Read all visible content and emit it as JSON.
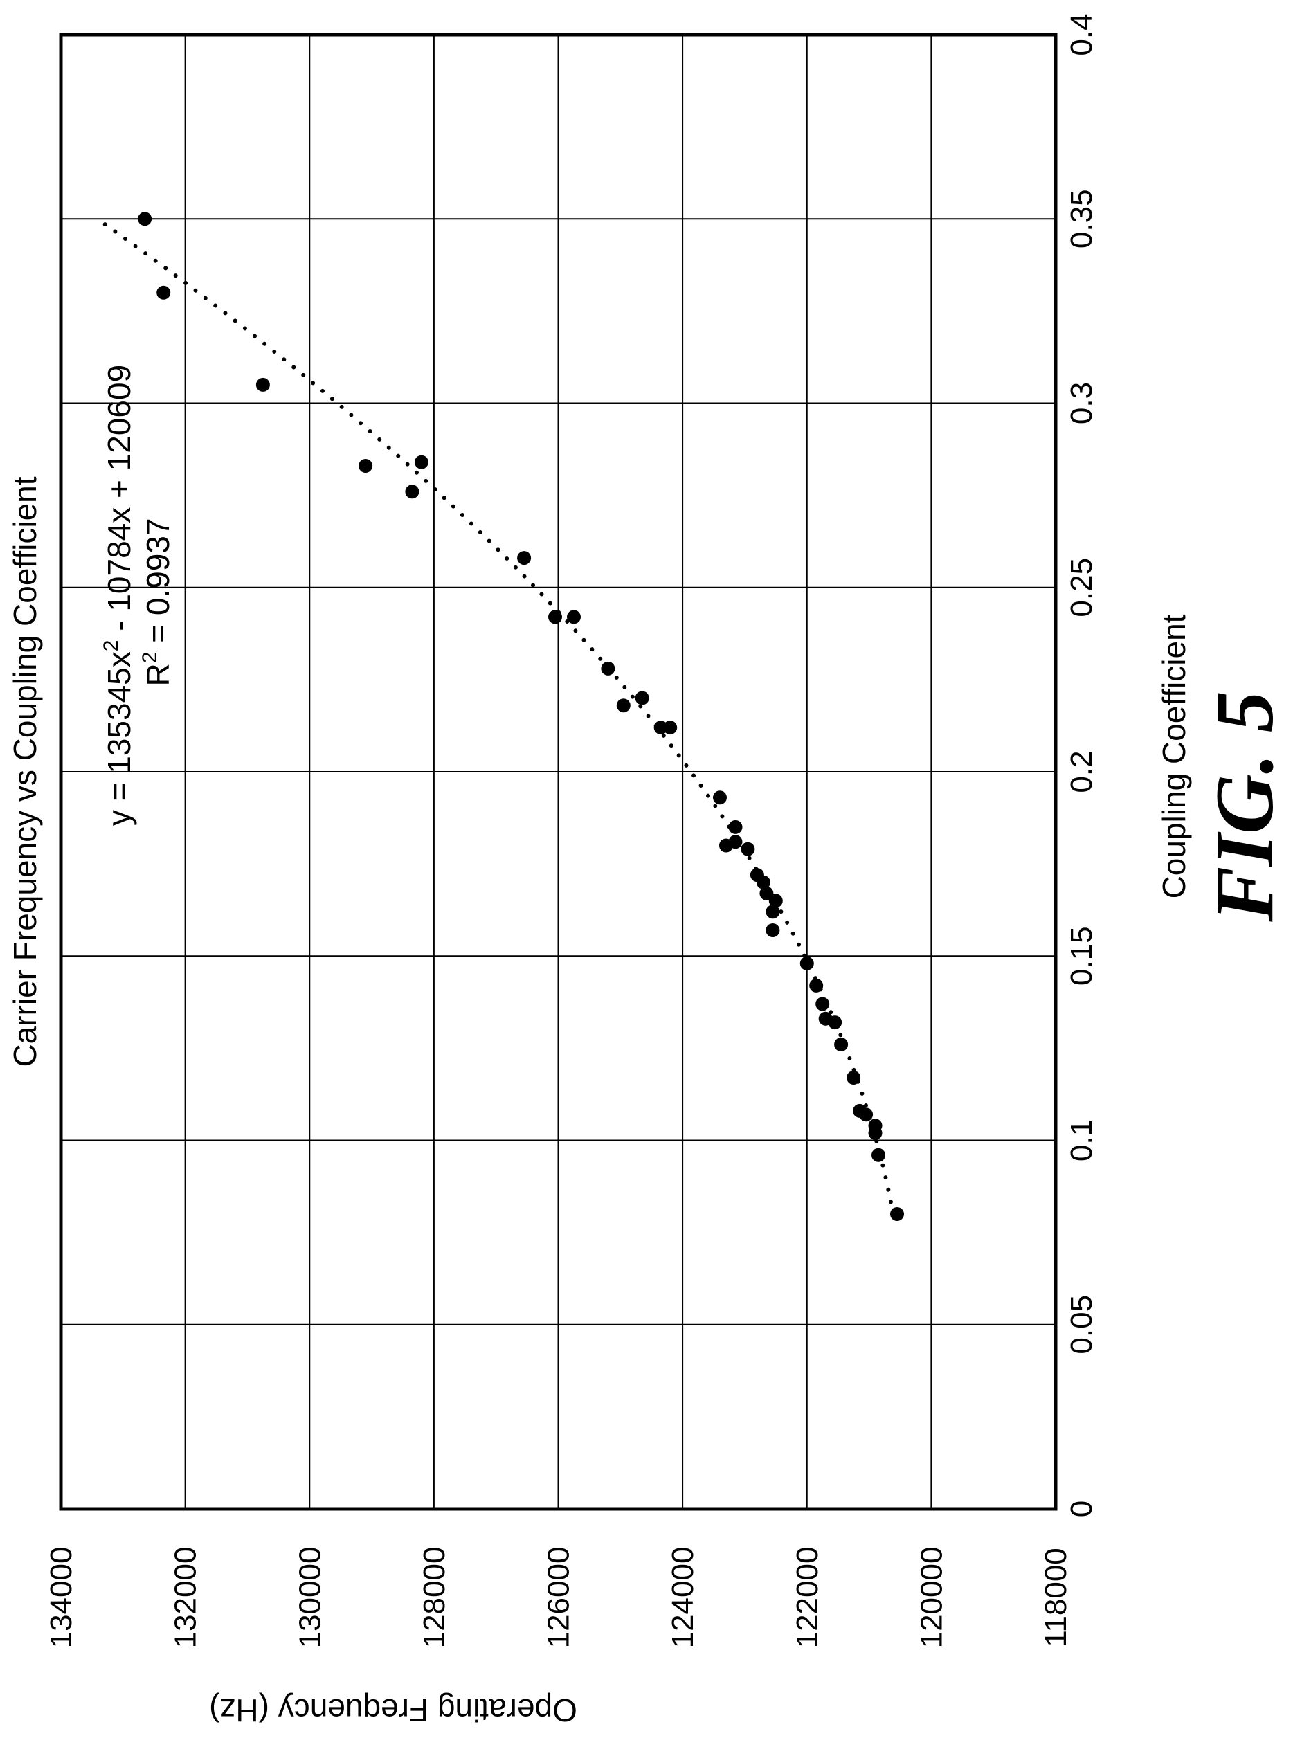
{
  "chart_data": {
    "type": "scatter",
    "title": "Carrier Frequency vs Coupling Coefficient",
    "xlabel": "Coupling Coefficient",
    "ylabel": "Operating Frequency (Hz)",
    "xlim": [
      0,
      0.4
    ],
    "ylim": [
      118000,
      134000
    ],
    "x_ticks": [
      "0",
      "0.05",
      "0.1",
      "0.15",
      "0.2",
      "0.25",
      "0.3",
      "0.35",
      "0.4"
    ],
    "y_ticks": [
      "118000",
      "120000",
      "122000",
      "124000",
      "126000",
      "128000",
      "130000",
      "132000",
      "134000"
    ],
    "grid": true,
    "trendline": {
      "kind": "polynomial-2",
      "equation_label": "y = 135345x",
      "equation_exponent": "2",
      "equation_rest": " - 10784x + 120609",
      "r2_label": "R",
      "r2_exponent": "2",
      "r2_rest": " = 0.9937",
      "coefficients": [
        135345,
        -10784,
        120609
      ],
      "x_range": [
        0.08,
        0.35
      ],
      "style": "dotted"
    },
    "series": [
      {
        "points": [
          [
            0.35,
            132650
          ],
          [
            0.33,
            132350
          ],
          [
            0.305,
            130750
          ],
          [
            0.283,
            129100
          ],
          [
            0.284,
            128200
          ],
          [
            0.276,
            128350
          ],
          [
            0.258,
            126550
          ],
          [
            0.242,
            126050
          ],
          [
            0.242,
            125750
          ],
          [
            0.228,
            125200
          ],
          [
            0.22,
            124650
          ],
          [
            0.218,
            124950
          ],
          [
            0.212,
            124200
          ],
          [
            0.212,
            124350
          ],
          [
            0.193,
            123400
          ],
          [
            0.185,
            123150
          ],
          [
            0.181,
            123150
          ],
          [
            0.18,
            123300
          ],
          [
            0.179,
            122950
          ],
          [
            0.172,
            122800
          ],
          [
            0.17,
            122700
          ],
          [
            0.167,
            122650
          ],
          [
            0.165,
            122500
          ],
          [
            0.162,
            122550
          ],
          [
            0.157,
            122550
          ],
          [
            0.148,
            122000
          ],
          [
            0.142,
            121850
          ],
          [
            0.137,
            121750
          ],
          [
            0.133,
            121700
          ],
          [
            0.132,
            121550
          ],
          [
            0.126,
            121450
          ],
          [
            0.117,
            121250
          ],
          [
            0.108,
            121150
          ],
          [
            0.107,
            121050
          ],
          [
            0.104,
            120900
          ],
          [
            0.102,
            120900
          ],
          [
            0.096,
            120850
          ],
          [
            0.08,
            120550
          ]
        ]
      }
    ]
  },
  "figure_label": "FIG. 5"
}
